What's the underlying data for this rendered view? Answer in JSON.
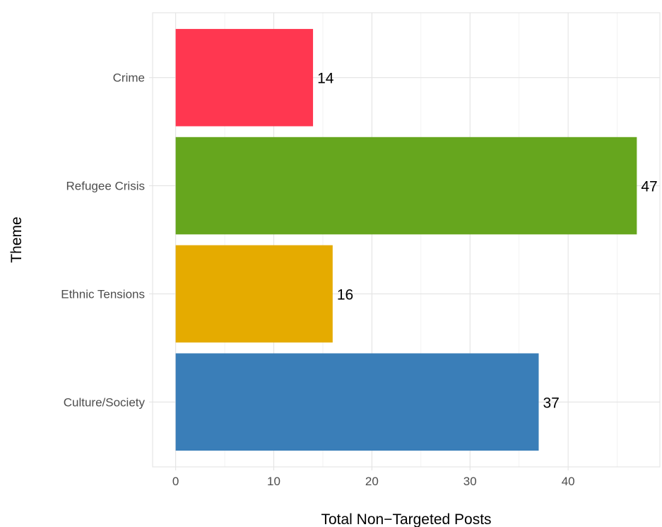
{
  "chart_data": {
    "type": "bar",
    "orientation": "horizontal",
    "categories": [
      "Culture/Society",
      "Ethnic Tensions",
      "Refugee Crisis",
      "Crime"
    ],
    "values": [
      37,
      16,
      47,
      14
    ],
    "colors": [
      "#3A7EB8",
      "#E5AB00",
      "#66A61E",
      "#FF3750"
    ],
    "data_labels": [
      "37",
      "16",
      "47",
      "14"
    ],
    "xlabel": "Total Non−Targeted Posts",
    "ylabel": "Theme",
    "xlim": [
      -2.35,
      49.35
    ],
    "xticks": [
      0,
      10,
      20,
      30,
      40
    ],
    "xtick_labels": [
      "0",
      "10",
      "20",
      "30",
      "40"
    ],
    "grid": true,
    "legend": "none"
  }
}
